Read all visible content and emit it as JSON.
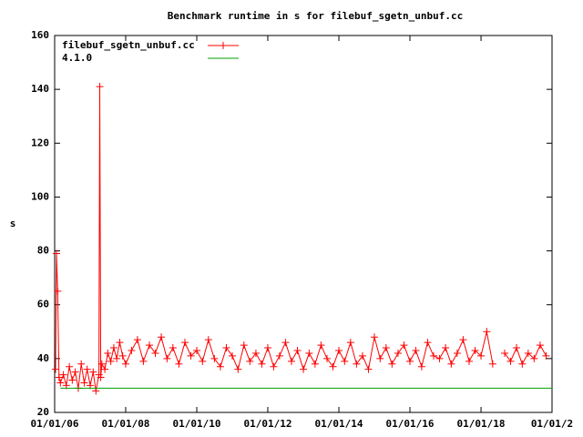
{
  "chart_data": {
    "type": "line",
    "title": "Benchmark runtime in s for filebuf_sgetn_unbuf.cc",
    "ylabel": "s",
    "ylim": [
      20,
      160
    ],
    "yticks": [
      20,
      40,
      60,
      80,
      100,
      120,
      140,
      160
    ],
    "xlim": [
      "2006-01-01",
      "2020-01-01"
    ],
    "xticks": [
      {
        "value": "2006-01-01",
        "label": "01/01/06"
      },
      {
        "value": "2008-01-01",
        "label": "01/01/08"
      },
      {
        "value": "2010-01-01",
        "label": "01/01/10"
      },
      {
        "value": "2012-01-01",
        "label": "01/01/12"
      },
      {
        "value": "2014-01-01",
        "label": "01/01/14"
      },
      {
        "value": "2016-01-01",
        "label": "01/01/16"
      },
      {
        "value": "2018-01-01",
        "label": "01/01/18"
      },
      {
        "value": "2020-01-01",
        "label": "01/01/2"
      }
    ],
    "legend": "top-left",
    "series": [
      {
        "name": "filebuf_sgetn_unbuf.cc",
        "color": "#ff0000",
        "markers": true,
        "x": [
          "2006-01-10",
          "2006-01-20",
          "2006-02-01",
          "2006-02-15",
          "2006-03-01",
          "2006-04-01",
          "2006-05-01",
          "2006-06-01",
          "2006-07-01",
          "2006-08-01",
          "2006-09-01",
          "2006-10-01",
          "2006-11-01",
          "2006-12-01",
          "2007-01-01",
          "2007-02-01",
          "2007-03-01",
          "2007-04-01",
          "2007-04-10",
          "2007-04-20",
          "2007-05-01",
          "2007-06-01",
          "2007-07-01",
          "2007-08-01",
          "2007-09-01",
          "2007-10-01",
          "2007-11-01",
          "2007-12-01",
          "2008-01-01",
          "2008-03-01",
          "2008-05-01",
          "2008-07-01",
          "2008-09-01",
          "2008-11-01",
          "2009-01-01",
          "2009-03-01",
          "2009-05-01",
          "2009-07-01",
          "2009-09-01",
          "2009-11-01",
          "2010-01-01",
          "2010-03-01",
          "2010-05-01",
          "2010-07-01",
          "2010-09-01",
          "2010-11-01",
          "2011-01-01",
          "2011-03-01",
          "2011-05-01",
          "2011-07-01",
          "2011-09-01",
          "2011-11-01",
          "2012-01-01",
          "2012-03-01",
          "2012-05-01",
          "2012-07-01",
          "2012-09-01",
          "2012-11-01",
          "2013-01-01",
          "2013-03-01",
          "2013-05-01",
          "2013-07-01",
          "2013-09-01",
          "2013-11-01",
          "2014-01-01",
          "2014-03-01",
          "2014-05-01",
          "2014-07-01",
          "2014-09-01",
          "2014-11-01",
          "2015-01-01",
          "2015-03-01",
          "2015-05-01",
          "2015-07-01",
          "2015-09-01",
          "2015-11-01",
          "2016-01-01",
          "2016-03-01",
          "2016-05-01",
          "2016-07-01",
          "2016-09-01",
          "2016-11-01",
          "2017-01-01",
          "2017-03-01",
          "2017-05-01",
          "2017-07-01",
          "2017-09-01",
          "2017-11-01",
          "2018-01-01",
          "2018-03-01",
          "2018-05-01",
          "2018-07-01",
          "2018-09-01",
          "2018-11-01",
          "2019-01-01",
          "2019-03-01",
          "2019-05-01",
          "2019-07-01",
          "2019-09-01",
          "2019-11-01"
        ],
        "values": [
          36,
          79,
          65,
          33,
          31,
          34,
          30,
          37,
          32,
          35,
          29,
          38,
          31,
          36,
          30,
          35,
          28,
          34,
          141,
          33,
          38,
          36,
          42,
          39,
          44,
          40,
          46,
          41,
          38,
          43,
          47,
          39,
          45,
          42,
          48,
          40,
          44,
          38,
          46,
          41,
          43,
          39,
          47,
          40,
          37,
          44,
          41,
          36,
          45,
          39,
          42,
          38,
          44,
          37,
          41,
          46,
          39,
          43,
          36,
          42,
          38,
          45,
          40,
          37,
          43,
          39,
          46,
          38,
          41,
          36,
          48,
          40,
          44,
          38,
          42,
          45,
          39,
          43,
          37,
          46,
          41,
          40,
          44,
          38,
          42,
          47,
          39,
          43,
          41,
          50,
          38,
          null,
          42,
          39,
          44,
          38,
          42,
          40,
          45,
          41
        ]
      },
      {
        "name": "4.1.0",
        "color": "#00a000",
        "markers": false,
        "x": [
          "2006-03-01",
          "2020-01-01"
        ],
        "values": [
          29,
          29
        ]
      }
    ]
  }
}
